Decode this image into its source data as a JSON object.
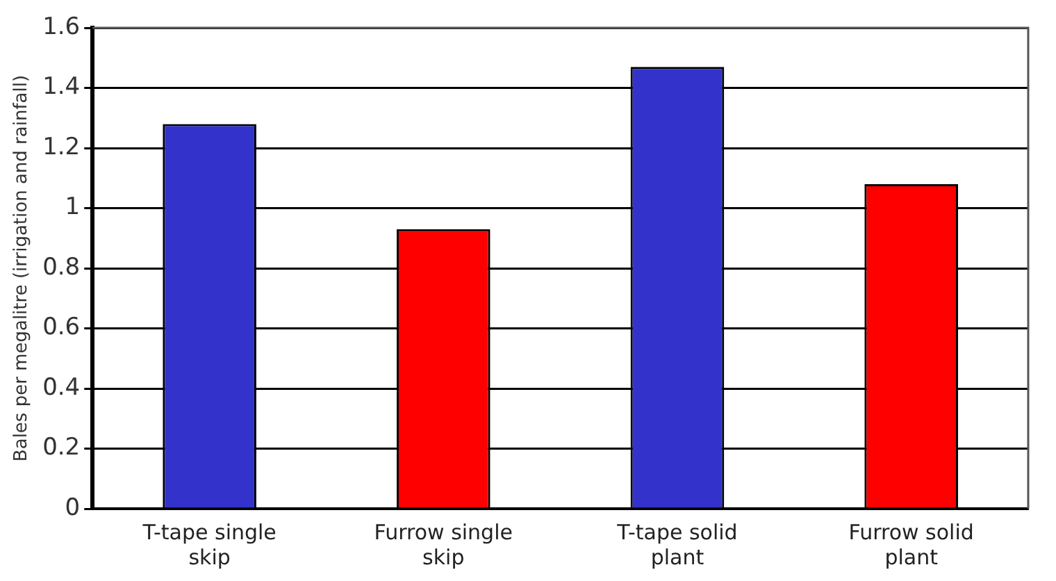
{
  "chart_data": {
    "type": "bar",
    "ylabel": "Bales per megalitre (irrigation and rainfall)",
    "categories": [
      "T-tape single skip",
      "Furrow single skip",
      "T-tape solid plant",
      "Furrow solid plant"
    ],
    "values": [
      1.28,
      0.93,
      1.47,
      1.08
    ],
    "colors": [
      "#3333cc",
      "#ff0000",
      "#3333cc",
      "#ff0000"
    ],
    "ylim": [
      0,
      1.6
    ],
    "yticks": [
      0,
      0.2,
      0.4,
      0.6,
      0.8,
      1,
      1.2,
      1.4,
      1.6
    ],
    "grid": "y",
    "legend": false
  }
}
